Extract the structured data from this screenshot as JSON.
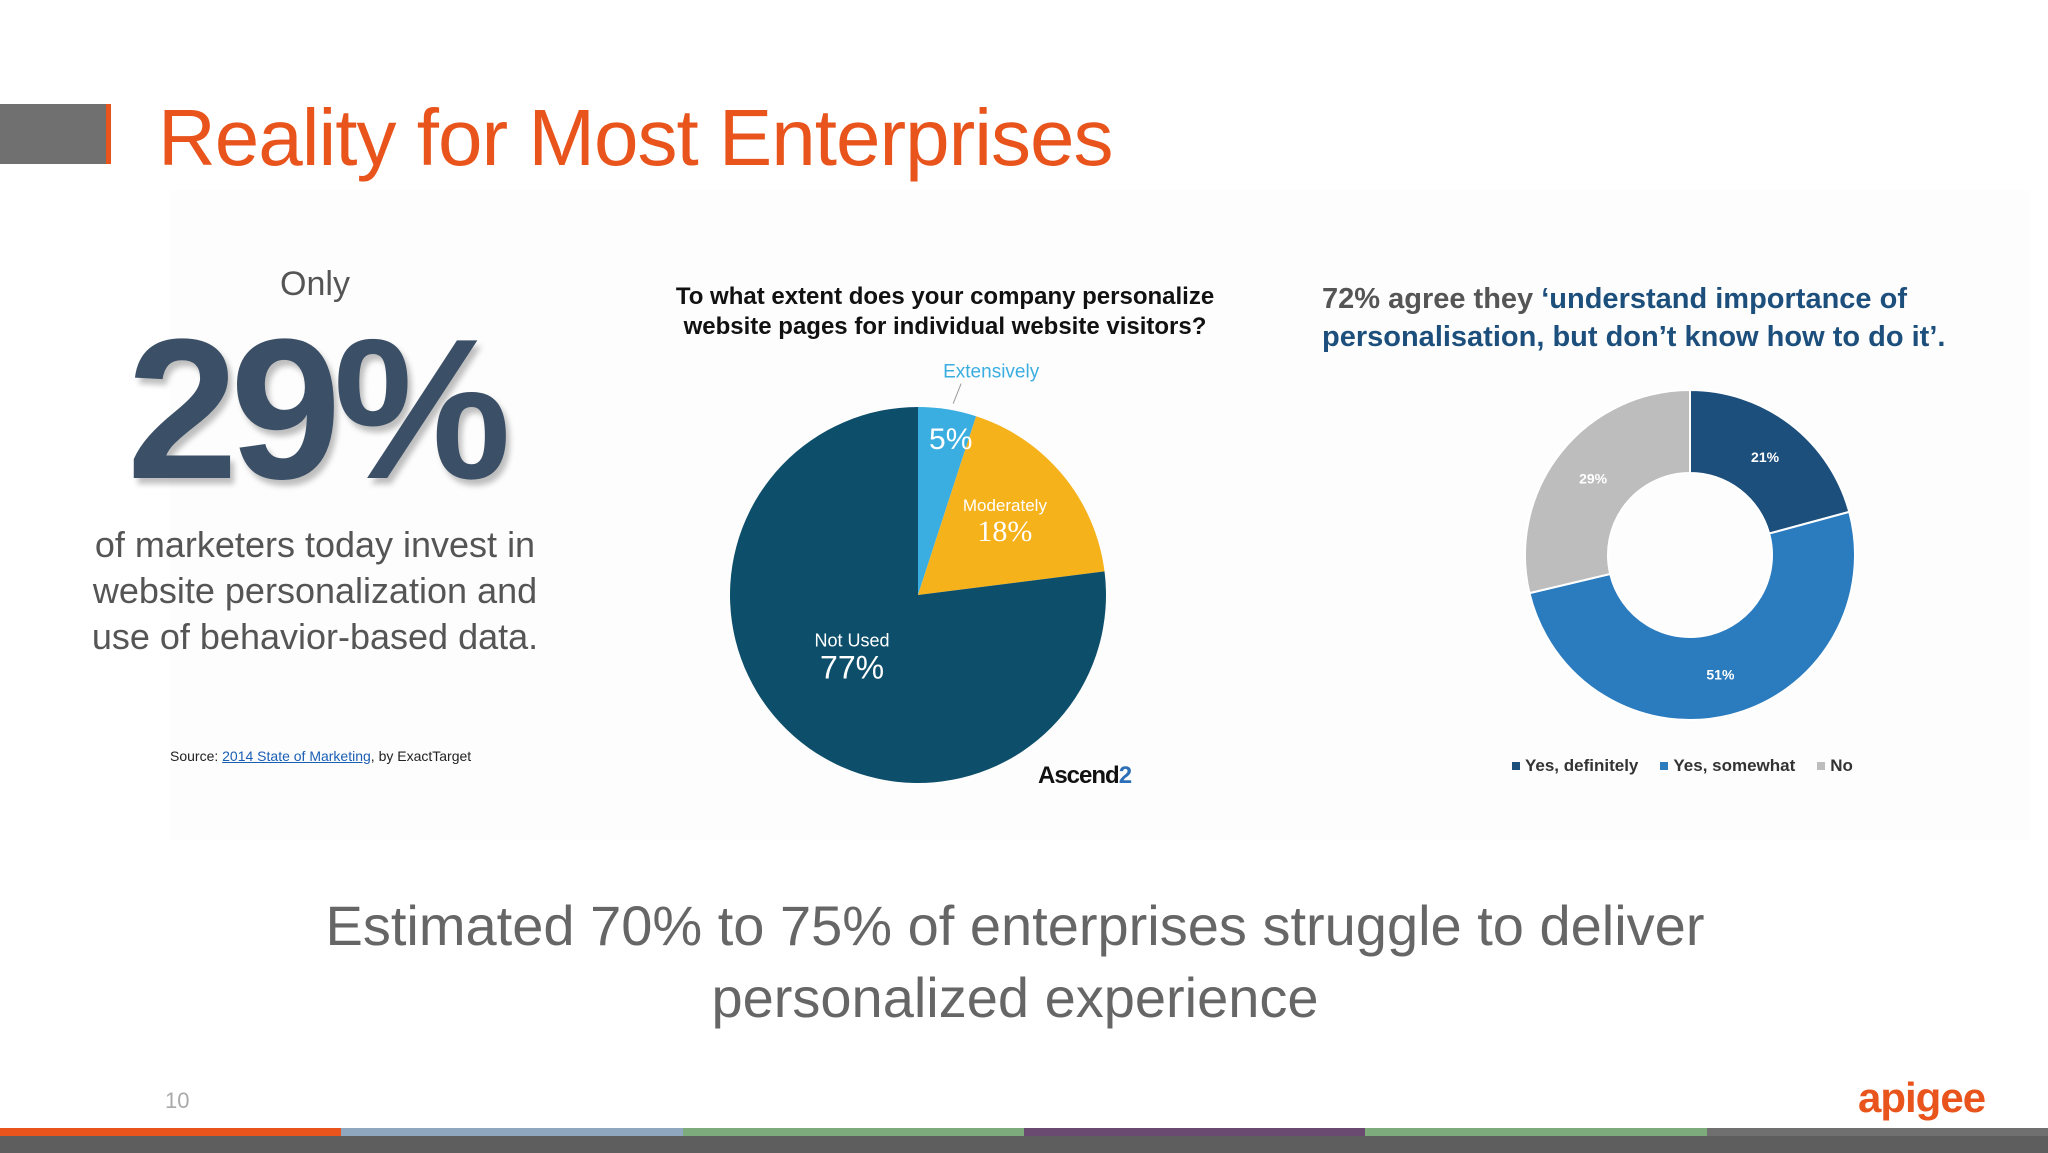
{
  "slide": {
    "title": "Reality for Most Enterprises",
    "page_number": "10",
    "brand": "apigee",
    "bottom_text_line1": "Estimated 70% to 75% of enterprises struggle to deliver",
    "bottom_text_line2": "personalized experience",
    "footer_colors": [
      "#e8541c",
      "#8fa8c0",
      "#7dab7c",
      "#6a4a70",
      "#7dab7c",
      "#707070"
    ]
  },
  "stat": {
    "only": "Only",
    "value": "29%",
    "desc_line1": "of marketers today invest in",
    "desc_line2": "website personalization and",
    "desc_line3": "use of behavior-based data.",
    "source_prefix": "Source: ",
    "source_link": "2014 State of Marketing",
    "source_suffix": ", by ExactTarget"
  },
  "chart_data": [
    {
      "type": "pie",
      "title_line1": "To what extent does your company personalize",
      "title_line2": "website pages for individual website visitors?",
      "slices": [
        {
          "label": "Extensively",
          "value": 5,
          "display": "5%",
          "color": "#3aaee0"
        },
        {
          "label": "Moderately",
          "value": 18,
          "display": "18%",
          "color": "#f6b21b"
        },
        {
          "label": "Not Used",
          "value": 77,
          "display": "77%",
          "color": "#0d4f6b"
        }
      ],
      "source_logo": "Ascend",
      "source_logo_suffix": "2"
    },
    {
      "type": "pie",
      "donut": true,
      "title_prefix": "72% agree they ",
      "title_highlight_line1": "‘understand importance of",
      "title_highlight_line2": "personalisation, but don’t know how to do it’.",
      "slices": [
        {
          "label": "Yes, definitely",
          "value": 21,
          "display": "21%",
          "color": "#1d4f7c"
        },
        {
          "label": "Yes, somewhat",
          "value": 51,
          "display": "51%",
          "color": "#2b7bbf"
        },
        {
          "label": "No",
          "value": 29,
          "display": "29%",
          "color": "#bdbdbd"
        }
      ],
      "legend_placement": "bottom"
    }
  ]
}
